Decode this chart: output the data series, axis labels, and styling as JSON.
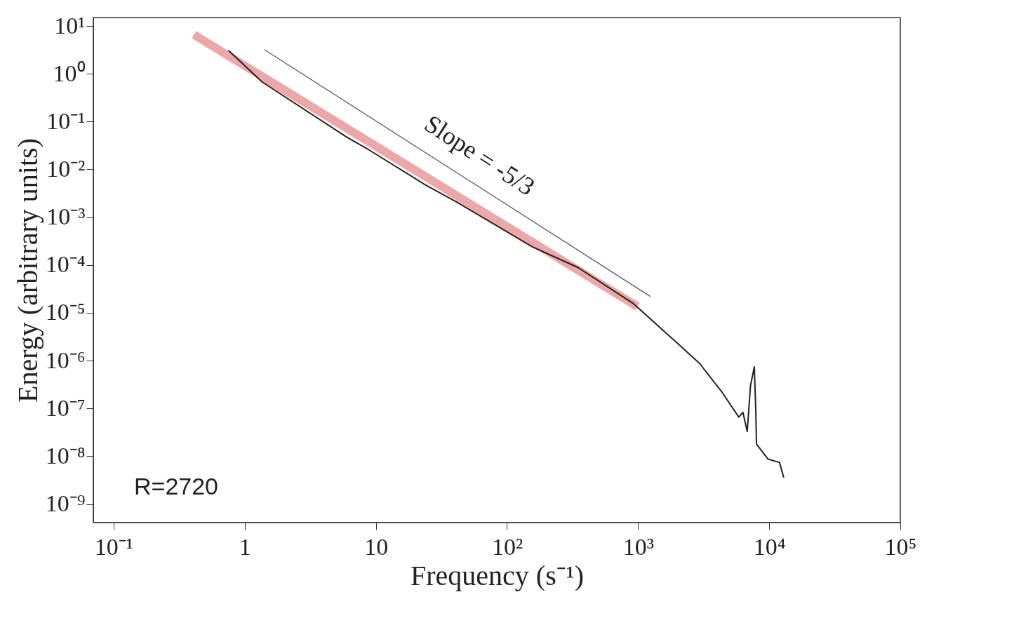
{
  "chart_data": {
    "type": "line",
    "xlabel": "Frequency (s⁻¹)",
    "ylabel": "Energy (arbitrary units)",
    "log": "xy",
    "grid": false,
    "marker": "none",
    "line_style": "solid",
    "xlim": [
      0.07,
      100000
    ],
    "ylim": [
      4.1e-10,
      15
    ],
    "xticks": [
      {
        "value": 0.1,
        "label": "10⁻¹"
      },
      1,
      10,
      {
        "value": 100,
        "label": "10²"
      },
      {
        "value": 1000,
        "label": "10³"
      },
      {
        "value": 10000,
        "label": "10⁴"
      },
      {
        "value": 100000,
        "label": "10⁵"
      }
    ],
    "yticks": [
      {
        "value": 10,
        "label": "10¹"
      },
      {
        "value": 1,
        "label": "10⁰"
      },
      {
        "value": 0.1,
        "label": "10⁻¹"
      },
      {
        "value": 0.01,
        "label": "10⁻²"
      },
      {
        "value": 0.001,
        "label": "10⁻³"
      },
      {
        "value": 0.0001,
        "label": "10⁻⁴"
      },
      {
        "value": 1e-05,
        "label": "10⁻⁵"
      },
      {
        "value": 1e-06,
        "label": "10⁻⁶"
      },
      {
        "value": 1e-07,
        "label": "10⁻⁷"
      },
      {
        "value": 1e-08,
        "label": "10⁻⁸"
      },
      {
        "value": 1e-09,
        "label": "10⁻⁹"
      }
    ],
    "series": [
      {
        "color": "#222222",
        "x": [
          0.75,
          1.36,
          6.1,
          8.4,
          24,
          41,
          156,
          347,
          910,
          2000,
          2950,
          4360,
          5860,
          6300,
          6800,
          7200,
          7700,
          7900,
          8000,
          9800,
          12000,
          12900
        ],
        "values": [
          3.1,
          0.67,
          0.046,
          0.028,
          0.0047,
          0.0021,
          0.00024,
          8.9e-05,
          1.6e-05,
          2.3e-06,
          8.7e-07,
          2.2e-07,
          6.6e-08,
          8.3e-08,
          3.3e-08,
          3e-07,
          7.4e-07,
          9.1e-08,
          1.8e-08,
          8.7e-09,
          7.4e-09,
          3.6e-09
        ]
      },
      {
        "type": "line",
        "color": "#e88a8a",
        "x": [
          0.41,
          990
        ],
        "values": [
          6.6,
          1.35e-05
        ]
      },
      {
        "type": "line",
        "color": "#555555",
        "x": [
          1.41,
          1240
        ],
        "values": [
          3.2,
          2.2e-05
        ]
      }
    ],
    "annotations": [
      "Slope = -5/3",
      "R=2720"
    ]
  }
}
